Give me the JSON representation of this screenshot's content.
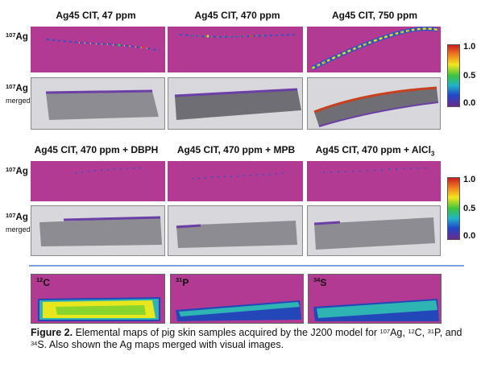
{
  "top_block": {
    "titles": [
      "Ag45 CIT, 47 ppm",
      "Ag45 CIT, 470 ppm",
      "Ag45 CIT, 750 ppm"
    ],
    "row1_label": {
      "sup": "107",
      "text": "Ag"
    },
    "row2_label": {
      "sup": "107",
      "text": "Ag",
      "sub": "merged"
    },
    "colorbar": {
      "max": "1.0",
      "mid": "0.5",
      "min": "0.0"
    }
  },
  "middle_block": {
    "titles": [
      "Ag45 CIT, 470 ppm + DBPH",
      "Ag45 CIT, 470 ppm + MPB",
      "Ag45 CIT, 470 ppm + AlCl"
    ],
    "title3_sub": "3",
    "row1_label": {
      "sup": "107",
      "text": "Ag"
    },
    "row2_label": {
      "sup": "107",
      "text": "Ag",
      "sub": "merged"
    },
    "colorbar": {
      "max": "1.0",
      "mid": "0.5",
      "min": "0.0"
    }
  },
  "element_maps": [
    {
      "sup": "12",
      "symbol": "C"
    },
    {
      "sup": "31",
      "symbol": "P"
    },
    {
      "sup": "34",
      "symbol": "S"
    }
  ],
  "caption": {
    "figure_label": "Figure 2.",
    "text1": " Elemental maps of pig skin samples acquired by the J200 model for ",
    "sup1": "107",
    "text2": "Ag, ",
    "sup2": "12",
    "text3": "C, ",
    "sup3": "31",
    "text4": "P, and ",
    "sup4": "34",
    "text5": "S. Also shown the Ag maps merged with visual images."
  },
  "colors": {
    "map_background": "#b23a92",
    "divider": "#7ba1dc",
    "tissue_hot": "#e8e61d",
    "tissue_mid": "#2fb4b4",
    "tissue_low": "#2346b8"
  }
}
